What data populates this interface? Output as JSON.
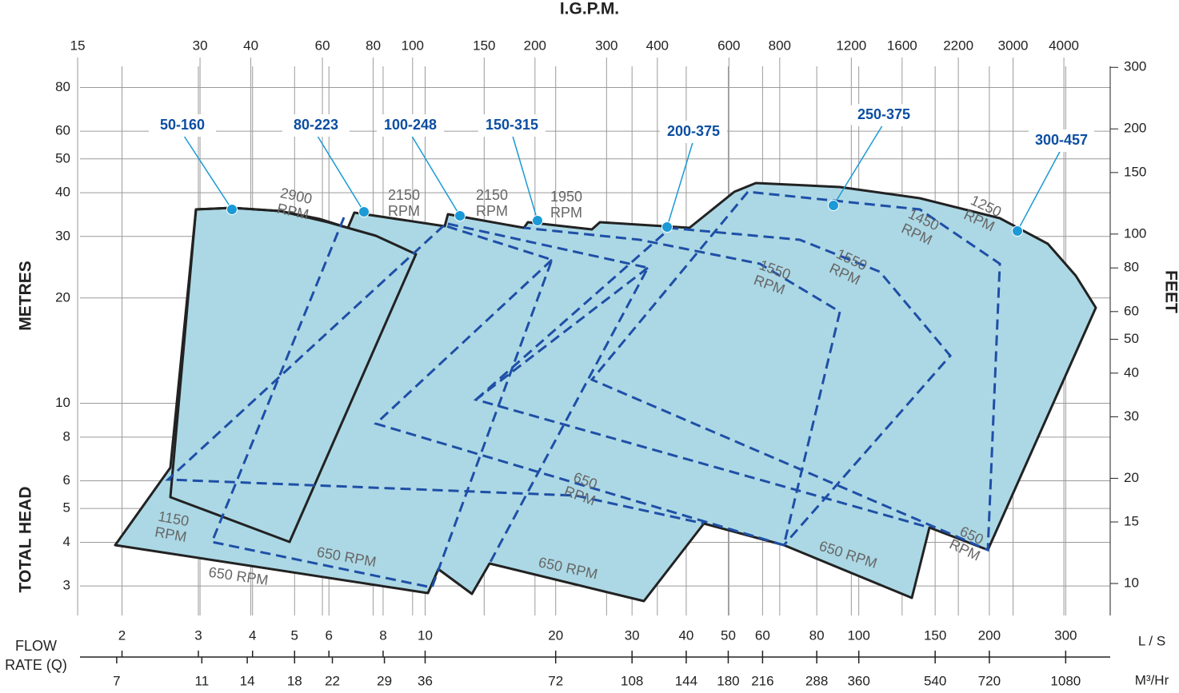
{
  "chart_data": {
    "type": "coverage",
    "title": "I.G.P.M.",
    "x_label": "FLOW RATE (Q)",
    "x_unit": "L / S",
    "x3_unit": "M³/Hr",
    "y_label_top": "METRES",
    "y_label_bottom": "TOTAL HEAD",
    "y2_label": "FEET",
    "xlim": [
      1.6,
      380
    ],
    "log_x": true,
    "xticks": [
      2,
      3,
      4,
      5,
      6,
      8,
      10,
      20,
      30,
      40,
      50,
      60,
      80,
      100,
      150,
      200,
      300
    ],
    "x2lim": [
      15.2,
      5200
    ],
    "x2ticks": [
      15,
      30,
      40,
      60,
      80,
      100,
      150,
      200,
      300,
      400,
      600,
      800,
      1200,
      1600,
      2200,
      3000,
      4000
    ],
    "x3lim": [
      5.76,
      1368
    ],
    "x3ticks": [
      7,
      11,
      14,
      18,
      22,
      29,
      36,
      72,
      108,
      144,
      180,
      216,
      288,
      360,
      540,
      720,
      1080
    ],
    "ylim": [
      2.47,
      92
    ],
    "log_y": true,
    "yticks": [
      3,
      4,
      5,
      6,
      8,
      10,
      20,
      30,
      40,
      50,
      60,
      80
    ],
    "y2lim": [
      8.1,
      302
    ],
    "y2ticks": [
      10,
      15,
      20,
      30,
      40,
      50,
      60,
      80,
      100,
      150,
      200,
      300
    ],
    "grid": true,
    "models": [
      "50-160",
      "80-223",
      "100-248",
      "150-315",
      "200-375",
      "250-375",
      "300-457"
    ],
    "speed_labels": [
      [
        "2900",
        "RPM"
      ],
      [
        "2150",
        "RPM"
      ],
      [
        "2150",
        "RPM"
      ],
      [
        "1950",
        "RPM"
      ],
      [
        "1550",
        "RPM"
      ],
      [
        "1550",
        "RPM"
      ],
      [
        "1450",
        "RPM"
      ],
      [
        "1250",
        "RPM"
      ],
      [
        "1150",
        "RPM"
      ],
      [
        "650",
        "RPM"
      ],
      [
        "650",
        "RPM"
      ],
      [
        "650 RPM"
      ],
      [
        "650 RPM"
      ],
      [
        "650 RPM"
      ],
      [
        "650 RPM"
      ]
    ]
  }
}
